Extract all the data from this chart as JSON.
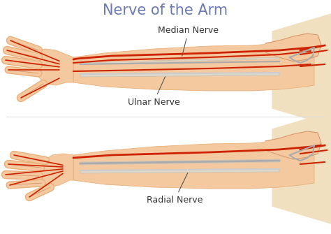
{
  "title": "Nerve of the Arm",
  "title_color": "#6b7ab5",
  "title_fontsize": 15,
  "background_color": "#ffffff",
  "skin_color": "#f5c9a0",
  "skin_light": "#fde8d0",
  "skin_dark": "#d4956a",
  "skin_mid": "#e8b07a",
  "nerve_red": "#cc2200",
  "nerve_gray": "#aaaaaa",
  "nerve_gray2": "#cccccc",
  "label_color": "#333333",
  "label_fontsize": 9,
  "label1": "Median Nerve",
  "label2": "Ulnar Nerve",
  "label3": "Radial Nerve",
  "shoulder_color": "#e8d0b0",
  "shoulder_light": "#f0e0c0",
  "line_color": "#555555"
}
